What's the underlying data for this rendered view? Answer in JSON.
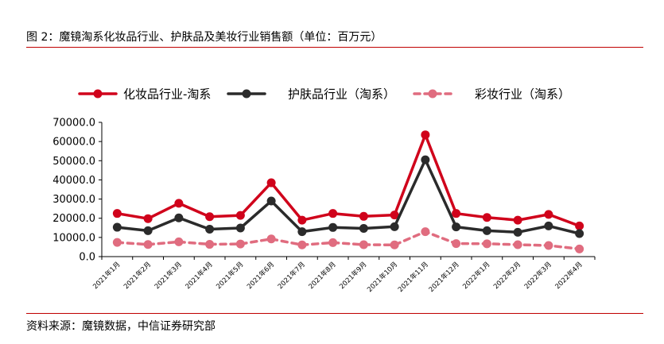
{
  "figure": {
    "title": "图 2：魔镜淘系化妆品行业、护肤品及美妆行业销售额（单位：百万元）",
    "source": "资料来源：魔镜数据，中信证券研究部"
  },
  "colors": {
    "rule": "#c00000",
    "series": [
      "#d0021b",
      "#2b2b2b",
      "#e06c7f"
    ]
  },
  "chart_data": {
    "type": "line",
    "title": "",
    "xlabel": "",
    "ylabel": "",
    "ylim": [
      0,
      70000
    ],
    "yticks": [
      "0.0",
      "10000.0",
      "20000.0",
      "30000.0",
      "40000.0",
      "50000.0",
      "60000.0",
      "70000.0"
    ],
    "legend_position": "top",
    "grid": false,
    "categories": [
      "2021年1月",
      "2021年2月",
      "2021年3月",
      "2021年4月",
      "2021年5月",
      "2021年6月",
      "2021年7月",
      "2021年8月",
      "2021年9月",
      "2021年10月",
      "2021年11月",
      "2021年12月",
      "2022年1月",
      "2022年2月",
      "2022年3月",
      "2022年4月"
    ],
    "series": [
      {
        "name": "化妆品行业-淘系",
        "style": "solid",
        "values": [
          22500,
          19800,
          27800,
          20800,
          21500,
          38500,
          19000,
          22500,
          21000,
          21700,
          63500,
          22500,
          20400,
          19000,
          22000,
          16000
        ]
      },
      {
        "name": "护肤品行业（淘系）",
        "style": "solid",
        "values": [
          15300,
          13500,
          20200,
          14300,
          14900,
          29000,
          13000,
          15200,
          14700,
          15600,
          50500,
          15500,
          13500,
          12700,
          16000,
          12000
        ]
      },
      {
        "name": "彩妆行业（淘系）",
        "style": "dashed",
        "values": [
          7400,
          6300,
          7700,
          6400,
          6600,
          9200,
          6100,
          7300,
          6200,
          6100,
          13000,
          6800,
          6700,
          6200,
          5800,
          4000
        ]
      }
    ]
  }
}
